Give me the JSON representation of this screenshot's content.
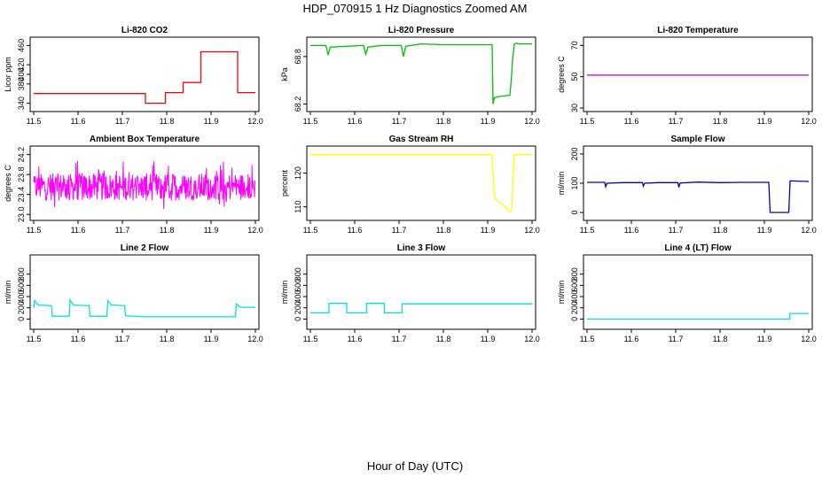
{
  "figure": {
    "title": "HDP_070915  1 Hz Diagnostics Zoomed AM",
    "xlabel": "Hour of Day (UTC)"
  },
  "chart_data": [
    {
      "type": "line",
      "title": "Li-820 CO2",
      "ylabel": "Licor ppm",
      "xlim": [
        11.5,
        12.0
      ],
      "xticks": [
        "11.5",
        "11.6",
        "11.7",
        "11.8",
        "11.9",
        "12.0"
      ],
      "ylim": [
        330,
        470
      ],
      "yticks": [
        "340",
        "380",
        "400",
        "420",
        "460"
      ],
      "ytick_values": [
        340,
        380,
        400,
        420,
        460
      ],
      "color": "#ff0000",
      "step": true,
      "series": [
        {
          "x": [
            11.5,
            11.75,
            11.752,
            11.795,
            11.797,
            11.835,
            11.837,
            11.875,
            11.877,
            11.958,
            11.96,
            12.0
          ],
          "y": [
            360,
            360,
            340,
            340,
            362,
            362,
            383,
            383,
            447,
            447,
            362,
            362
          ]
        }
      ]
    },
    {
      "type": "line",
      "title": "Li-820 Pressure",
      "ylabel": "kPa",
      "xlim": [
        11.5,
        12.0
      ],
      "xticks": [
        "11.5",
        "11.6",
        "11.7",
        "11.8",
        "11.9",
        "12.0"
      ],
      "ylim": [
        68.15,
        69.0
      ],
      "yticks": [
        "68.2",
        "68.8"
      ],
      "ytick_values": [
        68.2,
        68.8
      ],
      "color": "#00c000",
      "step": false,
      "series": [
        {
          "x": [
            11.5,
            11.535,
            11.54,
            11.545,
            11.58,
            11.62,
            11.625,
            11.63,
            11.66,
            11.705,
            11.71,
            11.715,
            11.75,
            11.8,
            11.85,
            11.9,
            11.91,
            11.912,
            11.915,
            11.93,
            11.95,
            11.953,
            11.956,
            11.96,
            11.965,
            11.97,
            12.0
          ],
          "y": [
            68.94,
            68.94,
            68.82,
            68.92,
            68.93,
            68.94,
            68.83,
            68.92,
            68.94,
            68.94,
            68.8,
            68.93,
            68.96,
            68.95,
            68.95,
            68.95,
            68.95,
            68.2,
            68.28,
            68.3,
            68.31,
            68.5,
            68.75,
            68.96,
            68.97,
            68.96,
            68.96
          ]
        }
      ]
    },
    {
      "type": "line",
      "title": "Li-820 Temperature",
      "ylabel": "degrees C",
      "xlim": [
        11.5,
        12.0
      ],
      "xticks": [
        "11.5",
        "11.6",
        "11.7",
        "11.8",
        "11.9",
        "12.0"
      ],
      "ylim": [
        30,
        73
      ],
      "yticks": [
        "30",
        "50",
        "70"
      ],
      "ytick_values": [
        30,
        50,
        70
      ],
      "color": "#c000c0",
      "step": false,
      "series": [
        {
          "x": [
            11.5,
            12.0
          ],
          "y": [
            51,
            51
          ]
        }
      ]
    },
    {
      "type": "line",
      "title": "Ambient Box Temperature",
      "ylabel": "degrees C",
      "xlim": [
        11.5,
        12.0
      ],
      "xticks": [
        "11.5",
        "11.6",
        "11.7",
        "11.8",
        "11.9",
        "12.0"
      ],
      "ylim": [
        22.95,
        24.3
      ],
      "yticks": [
        "23.0",
        "23.4",
        "23.8",
        "24.2"
      ],
      "ytick_values": [
        23.0,
        23.4,
        23.8,
        24.2
      ],
      "color": "#ff00ff",
      "step": false,
      "noise": true,
      "noise_center": 23.55,
      "noise_low": 23.05,
      "noise_high": 24.1,
      "series": [
        {
          "x": [
            11.5,
            12.0
          ],
          "y": [
            23.55,
            23.55
          ]
        }
      ]
    },
    {
      "type": "line",
      "title": "Gas Stream RH",
      "ylabel": "percent",
      "xlim": [
        11.5,
        12.0
      ],
      "xticks": [
        "11.5",
        "11.6",
        "11.7",
        "11.8",
        "11.9",
        "12.0"
      ],
      "ylim": [
        107,
        127
      ],
      "yticks": [
        "110",
        "120"
      ],
      "ytick_values": [
        110,
        120
      ],
      "color": "#ffff00",
      "step": false,
      "series": [
        {
          "x": [
            11.5,
            11.9,
            11.91,
            11.912,
            11.915,
            11.92,
            11.93,
            11.94,
            11.945,
            11.95,
            11.953,
            11.955,
            11.957,
            11.96,
            12.0
          ],
          "y": [
            125.5,
            125.5,
            125.5,
            120,
            113,
            112,
            111,
            110,
            109,
            108.5,
            109,
            110,
            118,
            125.5,
            125.5
          ]
        }
      ]
    },
    {
      "type": "line",
      "title": "Sample Flow",
      "ylabel": "ml/min",
      "xlim": [
        11.5,
        12.0
      ],
      "xticks": [
        "11.5",
        "11.6",
        "11.7",
        "11.8",
        "11.9",
        "12.0"
      ],
      "ylim": [
        -15,
        215
      ],
      "yticks": [
        "0",
        "100",
        "200"
      ],
      "ytick_values": [
        0,
        100,
        200
      ],
      "color": "#0000c0",
      "step": false,
      "series": [
        {
          "x": [
            11.5,
            11.54,
            11.542,
            11.545,
            11.58,
            11.625,
            11.627,
            11.63,
            11.66,
            11.705,
            11.707,
            11.71,
            11.75,
            11.8,
            11.85,
            11.91,
            11.913,
            11.955,
            11.958,
            11.962,
            12.0
          ],
          "y": [
            103,
            103,
            88,
            100,
            102,
            102,
            90,
            100,
            102,
            102,
            86,
            101,
            104,
            102,
            103,
            103,
            0,
            0,
            108,
            108,
            106
          ]
        }
      ]
    },
    {
      "type": "line",
      "title": "Line 2 Flow",
      "ylabel": "ml/min",
      "xlim": [
        11.5,
        12.0
      ],
      "xticks": [
        "11.5",
        "11.6",
        "11.7",
        "11.8",
        "11.9",
        "12.0"
      ],
      "ylim": [
        -120,
        1080
      ],
      "yticks": [
        "0",
        "200",
        "400",
        "600",
        "800"
      ],
      "ytick_values": [
        0,
        200,
        400,
        600,
        800
      ],
      "color": "#00e0e0",
      "step": false,
      "series": [
        {
          "x": [
            11.5,
            11.502,
            11.51,
            11.54,
            11.542,
            11.58,
            11.582,
            11.59,
            11.625,
            11.627,
            11.665,
            11.667,
            11.675,
            11.705,
            11.707,
            11.75,
            11.8,
            11.9,
            11.955,
            11.957,
            11.965,
            12.0
          ],
          "y": [
            200,
            330,
            250,
            240,
            50,
            50,
            340,
            250,
            240,
            50,
            50,
            330,
            250,
            240,
            60,
            40,
            40,
            40,
            40,
            270,
            210,
            210
          ]
        }
      ]
    },
    {
      "type": "line",
      "title": "Line 3 Flow",
      "ylabel": "ml/min",
      "xlim": [
        11.5,
        12.0
      ],
      "xticks": [
        "11.5",
        "11.6",
        "11.7",
        "11.8",
        "11.9",
        "12.0"
      ],
      "ylim": [
        -120,
        1080
      ],
      "yticks": [
        "0",
        "200",
        "400",
        "600",
        "800"
      ],
      "ytick_values": [
        0,
        200,
        400,
        600,
        800
      ],
      "color": "#00e0e0",
      "step": true,
      "series": [
        {
          "x": [
            11.5,
            11.54,
            11.542,
            11.58,
            11.582,
            11.625,
            11.627,
            11.665,
            11.667,
            11.705,
            11.707,
            11.96,
            12.0
          ],
          "y": [
            110,
            110,
            280,
            280,
            110,
            110,
            280,
            280,
            110,
            110,
            270,
            270,
            260
          ]
        }
      ]
    },
    {
      "type": "line",
      "title": "Line 4 (LT) Flow",
      "ylabel": "ml/min",
      "xlim": [
        11.5,
        12.0
      ],
      "xticks": [
        "11.5",
        "11.6",
        "11.7",
        "11.8",
        "11.9",
        "12.0"
      ],
      "ylim": [
        -120,
        1080
      ],
      "yticks": [
        "0",
        "200",
        "400",
        "600",
        "800"
      ],
      "ytick_values": [
        0,
        200,
        400,
        600,
        800
      ],
      "color": "#00e0e0",
      "step": true,
      "series": [
        {
          "x": [
            11.5,
            11.955,
            11.957,
            12.0
          ],
          "y": [
            0,
            0,
            100,
            100
          ]
        }
      ]
    }
  ]
}
